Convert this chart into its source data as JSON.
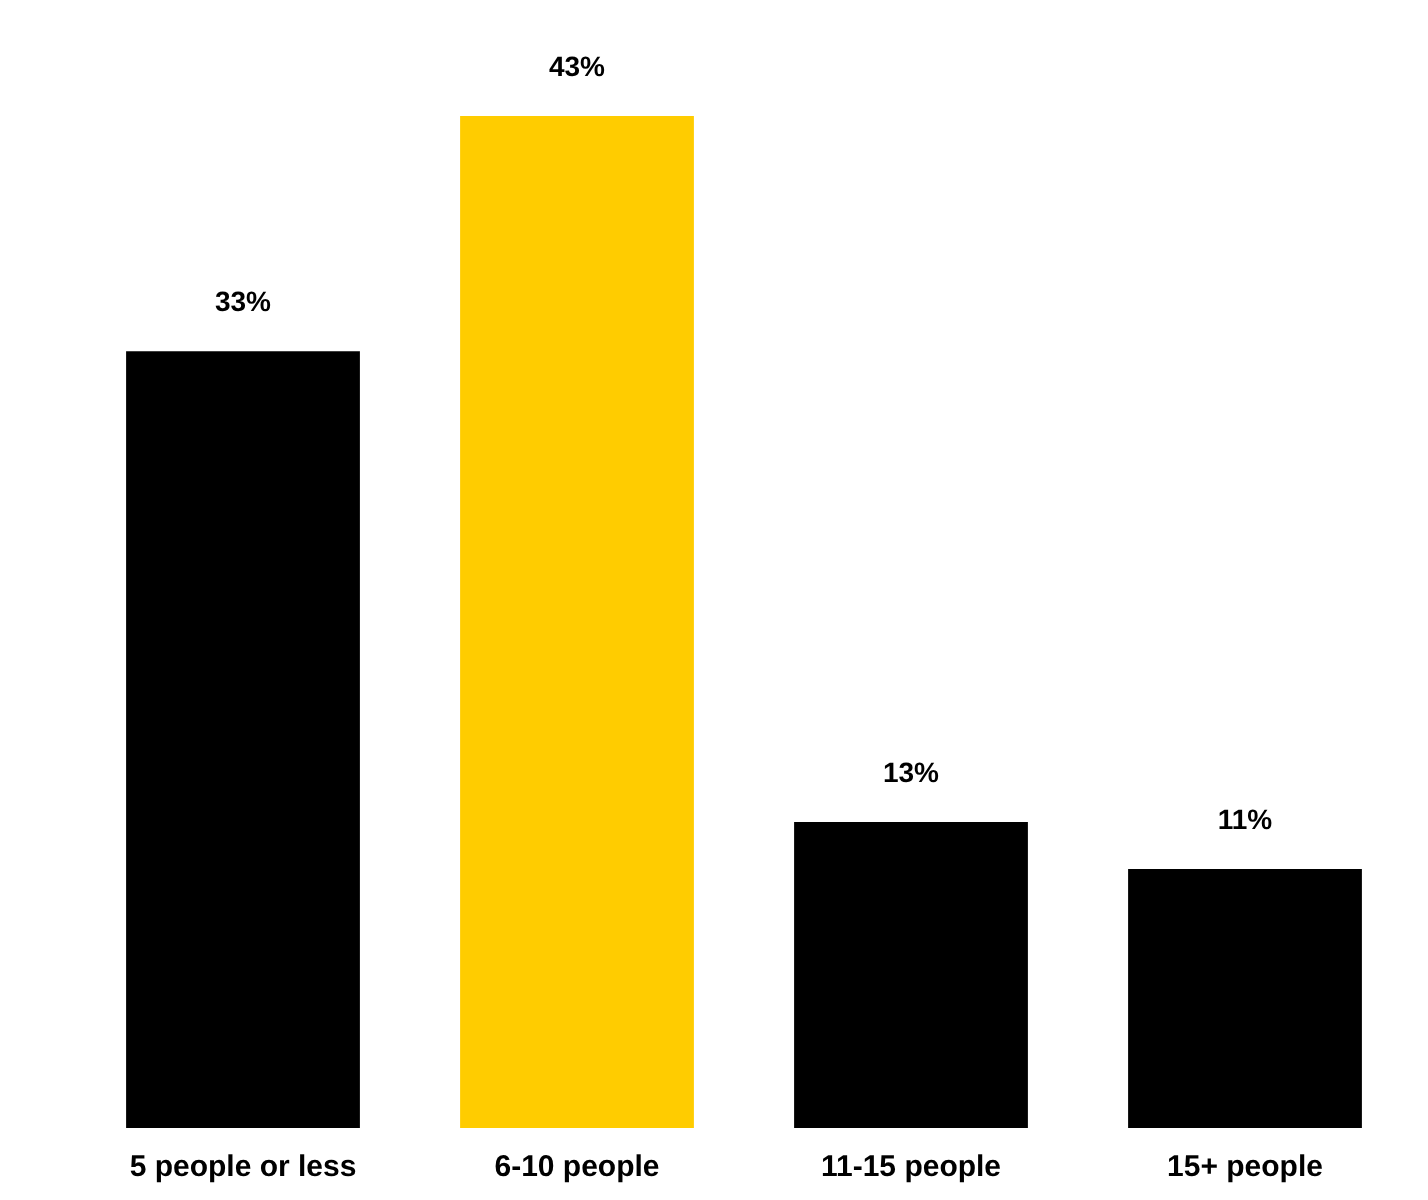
{
  "chart_data": {
    "type": "bar",
    "categories": [
      "5 people or less",
      "6-10 people",
      "11-15 people",
      "15+ people"
    ],
    "values": [
      33,
      43,
      13,
      11
    ],
    "colors": [
      "#000000",
      "#ffcc00",
      "#000000",
      "#000000"
    ],
    "value_labels": [
      "33%",
      "43%",
      "13%",
      "11%"
    ]
  }
}
